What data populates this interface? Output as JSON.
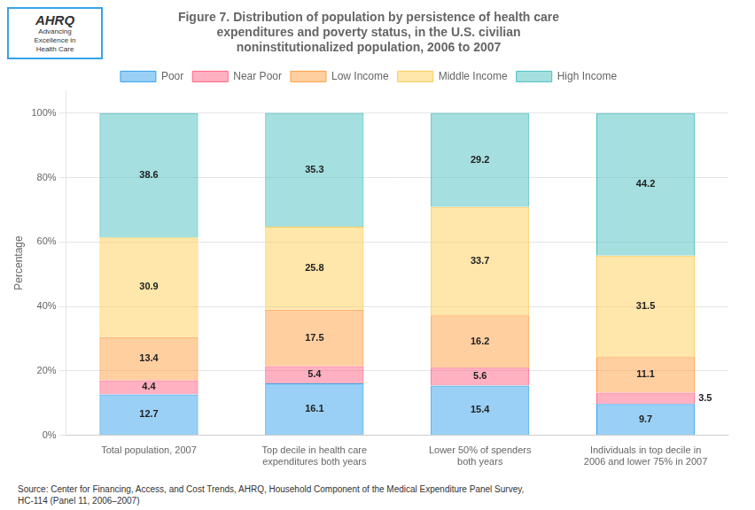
{
  "chart_data": {
    "type": "bar",
    "title": "Figure 7. Distribution of population by persistence of health care\nexpenditures and poverty status, in the U.S. civilian\nnoninstitutionalized population, 2006 to 2007",
    "y_label": "Percentage",
    "categories": [
      "Total population, 2007",
      "Top decile in health care\nexpenditures both years",
      "Lower 50% of spenders\nboth years",
      "Individuals in top decile in\n2006 and lower 75% in 2007"
    ],
    "series": [
      {
        "name": "Poor",
        "values": [
          12.7,
          16.1,
          15.4,
          9.7
        ]
      },
      {
        "name": "Near Poor",
        "values": [
          4.4,
          5.4,
          5.6,
          3.5
        ]
      },
      {
        "name": "Low Income",
        "values": [
          13.4,
          17.5,
          16.2,
          11.1
        ]
      },
      {
        "name": "Middle Income",
        "values": [
          30.9,
          25.8,
          33.7,
          31.5
        ]
      },
      {
        "name": "High Income",
        "values": [
          38.6,
          35.3,
          29.2,
          44.2
        ]
      }
    ],
    "stacked": true,
    "data_labels": true,
    "ylim": [
      0,
      107
    ],
    "yticks": [
      {
        "value": 0,
        "label": "0%"
      },
      {
        "value": 20,
        "label": "20%"
      },
      {
        "value": 40,
        "label": "40%"
      },
      {
        "value": 60,
        "label": "60%"
      },
      {
        "value": 80,
        "label": "80%"
      },
      {
        "value": 100,
        "label": "100%"
      }
    ],
    "grid": true,
    "legend": "top",
    "annotations": [
      "AHRQ",
      "Advancing\nExcellence in\nHealth Care",
      "Source: Center for Financing, Access, and Cost Trends, AHRQ, Household Component of the Medical Expenditure Panel Survey,\nHC-114 (Panel 11, 2006–2007)"
    ]
  }
}
